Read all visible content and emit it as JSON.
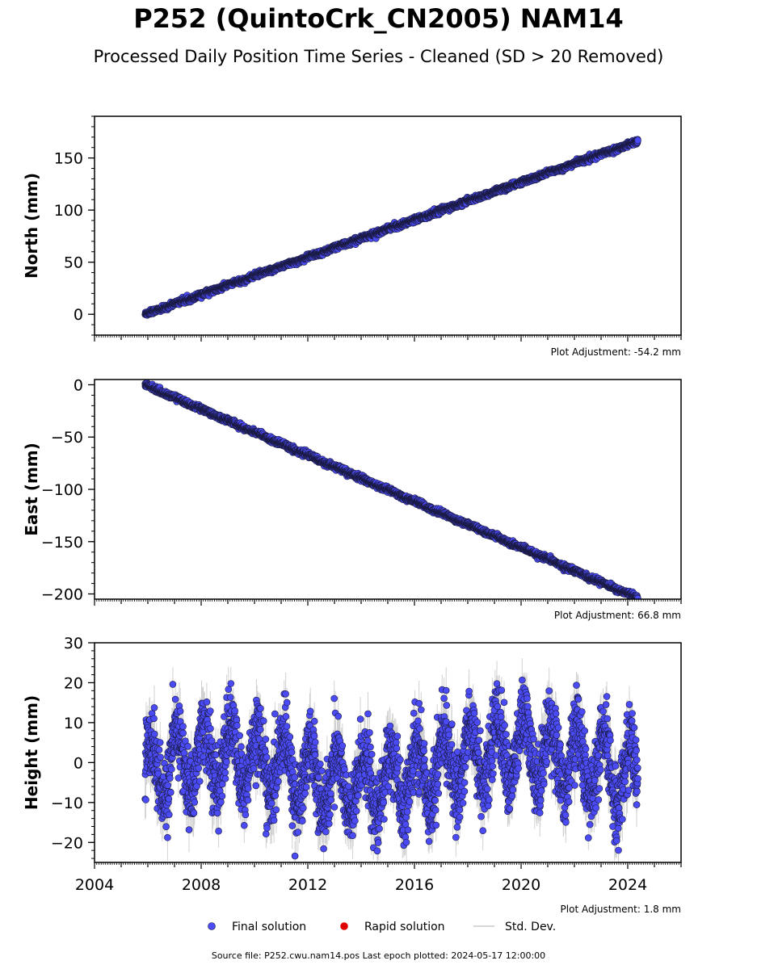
{
  "title": "P252 (QuintoCrk_CN2005) NAM14",
  "subtitle": "Processed Daily Position Time Series - Cleaned (SD > 20 Removed)",
  "source_line": "Source file: P252.cwu.nam14.pos  Last epoch plotted: 2024-05-17 12:00:00",
  "colors": {
    "final": "#4b4bf5",
    "rapid": "#e00000",
    "stddev": "#c8c8c8",
    "marker_edge": "#1a1a40"
  },
  "legend": [
    {
      "label": "Final solution",
      "marker": "blue-dot-icon"
    },
    {
      "label": "Rapid solution",
      "marker": "red-dot-icon"
    },
    {
      "label": "Std. Dev.",
      "marker": "gray-line-icon"
    }
  ],
  "chart_data": [
    {
      "type": "scatter",
      "ylabel": "North (mm)",
      "xlim": [
        2004,
        2026
      ],
      "ylim": [
        -20,
        190
      ],
      "yticks": [
        0,
        50,
        100,
        150
      ],
      "adjustment": "Plot Adjustment: -54.2 mm",
      "start_year": 2005.9,
      "end_year": 2024.38,
      "trend_start": 0,
      "trend_end": 166,
      "noise_sd": 1.2,
      "seasonal_amp": 0.5,
      "show_x_labels": false
    },
    {
      "type": "scatter",
      "ylabel": "East (mm)",
      "xlim": [
        2004,
        2026
      ],
      "ylim": [
        -205,
        5
      ],
      "yticks": [
        0,
        -50,
        -100,
        -150,
        -200
      ],
      "adjustment": "Plot Adjustment: 66.8 mm",
      "start_year": 2005.9,
      "end_year": 2024.38,
      "trend_start": 0,
      "trend_end": -204,
      "noise_sd": 1.2,
      "seasonal_amp": 0.6,
      "show_x_labels": false
    },
    {
      "type": "scatter",
      "ylabel": "Height (mm)",
      "xlim": [
        2004,
        2026
      ],
      "ylim": [
        -25,
        30
      ],
      "yticks": [
        30,
        20,
        10,
        0,
        -10,
        -20
      ],
      "adjustment": "Plot Adjustment: 1.8 mm",
      "start_year": 2005.9,
      "end_year": 2024.38,
      "trend_start": -3,
      "trend_end": 0,
      "noise_sd": 4.5,
      "seasonal_amp": 8,
      "show_x_labels": true,
      "xticks": [
        2004,
        2008,
        2012,
        2016,
        2020,
        2024
      ]
    }
  ]
}
